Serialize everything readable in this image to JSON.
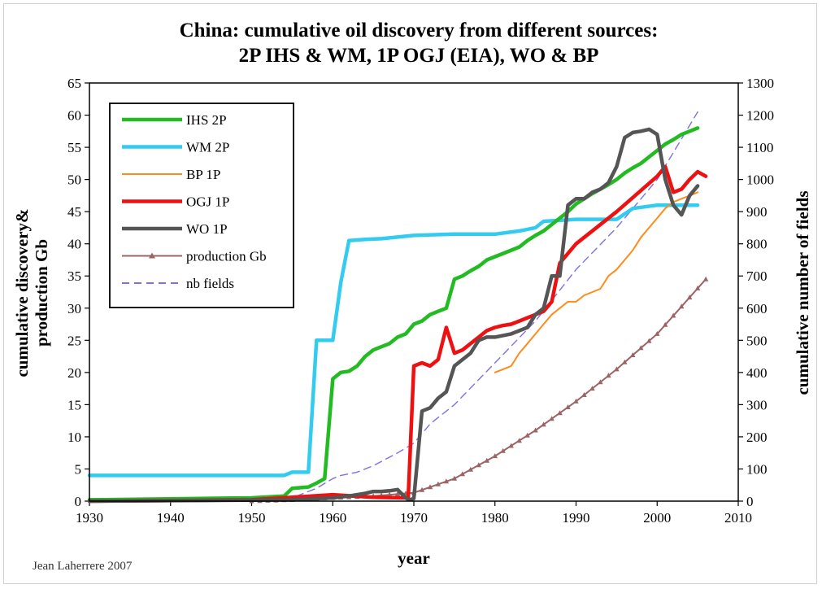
{
  "chart_data": {
    "type": "line",
    "title": "China: cumulative oil discovery from different sources:",
    "subtitle": "2P IHS & WM,  1P OGJ (EIA), WO & BP",
    "xlabel": "year",
    "ylabel_line1": "cumulative discovery&",
    "ylabel_line2": "production Gb",
    "y2label": "cumulative number of fields",
    "credit": "Jean Laherrere 2007",
    "xlim": [
      1930,
      2010
    ],
    "ylim": [
      0,
      65
    ],
    "y2lim": [
      0,
      1300
    ],
    "xticks": [
      1930,
      1940,
      1950,
      1960,
      1970,
      1980,
      1990,
      2000,
      2010
    ],
    "yticks": [
      0,
      5,
      10,
      15,
      20,
      25,
      30,
      35,
      40,
      45,
      50,
      55,
      60,
      65
    ],
    "y2ticks": [
      0,
      100,
      200,
      300,
      400,
      500,
      600,
      700,
      800,
      900,
      1000,
      1100,
      1200,
      1300
    ],
    "grid": false,
    "legend_position": "top-left",
    "series": [
      {
        "name": "IHS 2P",
        "color": "#22bb22",
        "width": 4.5,
        "dash": "",
        "axis": "left",
        "x": [
          1930,
          1950,
          1954,
          1955,
          1957,
          1958,
          1959,
          1960,
          1961,
          1962,
          1963,
          1964,
          1965,
          1966,
          1967,
          1968,
          1969,
          1970,
          1971,
          1972,
          1973,
          1974,
          1975,
          1976,
          1977,
          1978,
          1979,
          1980,
          1981,
          1982,
          1983,
          1984,
          1985,
          1986,
          1987,
          1988,
          1989,
          1990,
          1991,
          1992,
          1993,
          1994,
          1995,
          1996,
          1997,
          1998,
          1999,
          2000,
          2001,
          2002,
          2003,
          2004,
          2005
        ],
        "y": [
          0.2,
          0.5,
          0.8,
          2,
          2.2,
          2.8,
          3.5,
          19,
          20,
          20.2,
          21,
          22.5,
          23.5,
          24,
          24.5,
          25.5,
          26,
          27.5,
          28,
          29,
          29.5,
          30,
          34.5,
          35,
          35.8,
          36.5,
          37.5,
          38,
          38.5,
          39,
          39.5,
          40.5,
          41.3,
          42,
          43,
          44,
          45,
          46.2,
          47,
          47.8,
          48.5,
          49.2,
          50,
          51,
          51.8,
          52.5,
          53.5,
          54.5,
          55.5,
          56.2,
          57,
          57.5,
          58
        ]
      },
      {
        "name": "WM 2P",
        "color": "#33ccf0",
        "width": 4.5,
        "dash": "",
        "axis": "left",
        "x": [
          1930,
          1954,
          1955,
          1957,
          1958,
          1959,
          1960,
          1961,
          1962,
          1964,
          1966,
          1970,
          1975,
          1980,
          1983,
          1985,
          1986,
          1990,
          1995,
          1997,
          2000,
          2005
        ],
        "y": [
          4,
          4,
          4.5,
          4.5,
          25,
          25,
          25,
          34,
          40.5,
          40.7,
          40.8,
          41.3,
          41.5,
          41.5,
          42,
          42.5,
          43.5,
          43.8,
          43.8,
          45.5,
          46,
          46
        ]
      },
      {
        "name": "BP 1P",
        "color": "#ff8c1a",
        "width": 2,
        "dash": "",
        "axis": "left",
        "x": [
          1980,
          1981,
          1982,
          1983,
          1984,
          1985,
          1986,
          1987,
          1988,
          1989,
          1990,
          1991,
          1992,
          1993,
          1994,
          1995,
          1996,
          1997,
          1998,
          1999,
          2000,
          2001,
          2002,
          2003,
          2004,
          2005
        ],
        "y": [
          20,
          20.5,
          21,
          23,
          24.5,
          26,
          27.5,
          29,
          30,
          31,
          31,
          32,
          32.5,
          33,
          35,
          36,
          37.5,
          39,
          41,
          42.5,
          44,
          45.5,
          46.5,
          47,
          47.5,
          48
        ]
      },
      {
        "name": "OGJ 1P",
        "color": "#ee1111",
        "width": 4.5,
        "dash": "",
        "axis": "left",
        "x": [
          1930,
          1950,
          1955,
          1960,
          1965,
          1969,
          1969.3,
          1970,
          1971,
          1972,
          1973,
          1974,
          1975,
          1976,
          1977,
          1978,
          1979,
          1980,
          1981,
          1982,
          1983,
          1984,
          1985,
          1986,
          1987,
          1988,
          1990,
          1995,
          2000,
          2001,
          2002,
          2003,
          2004,
          2005,
          2006
        ],
        "y": [
          0,
          0.2,
          0.6,
          1,
          0.6,
          0.5,
          0.3,
          21,
          21.5,
          21,
          22,
          27,
          23,
          23.5,
          24.5,
          25.5,
          26.5,
          27,
          27.3,
          27.5,
          28,
          28.5,
          29,
          29.5,
          31,
          37,
          40,
          45,
          50.5,
          52,
          48,
          48.5,
          50,
          51.2,
          50.5
        ]
      },
      {
        "name": "WO  1P",
        "color": "#555555",
        "width": 4.5,
        "dash": "",
        "axis": "left",
        "x": [
          1930,
          1955,
          1960,
          1962,
          1964,
          1965,
          1966,
          1967,
          1968,
          1969,
          1969.5,
          1970,
          1971,
          1972,
          1973,
          1974,
          1975,
          1976,
          1977,
          1978,
          1979,
          1980,
          1982,
          1984,
          1985,
          1986,
          1987,
          1988,
          1989,
          1990,
          1991,
          1992,
          1993,
          1994,
          1995,
          1996,
          1997,
          1998,
          1999,
          2000,
          2001,
          2002,
          2003,
          2004,
          2005
        ],
        "y": [
          0,
          0.2,
          0.5,
          0.8,
          1.2,
          1.5,
          1.5,
          1.6,
          1.8,
          0.5,
          0.2,
          0.4,
          14,
          14.5,
          16,
          17,
          21,
          22,
          23,
          25,
          25.5,
          25.5,
          26,
          27,
          29,
          30,
          35,
          35,
          46,
          47,
          47,
          48,
          48.5,
          49.5,
          52,
          56.5,
          57.3,
          57.5,
          57.8,
          57,
          50,
          46,
          44.5,
          47.5,
          49
        ]
      },
      {
        "name": "production Gb",
        "color": "#9c6464",
        "width": 2,
        "dash": "",
        "axis": "left",
        "marker": "triangle",
        "x": [
          1950,
          1955,
          1960,
          1965,
          1970,
          1975,
          1980,
          1985,
          1990,
          1995,
          2000,
          2006
        ],
        "y": [
          0,
          0.2,
          0.5,
          0.8,
          1.3,
          3.5,
          7,
          11,
          15.5,
          20.5,
          26,
          34.5
        ]
      },
      {
        "name": "nb fields",
        "color": "#7b70e8",
        "width": 1.4,
        "dash": "9,6",
        "axis": "right",
        "x": [
          1930,
          1950,
          1955,
          1958,
          1960,
          1961,
          1962,
          1963,
          1965,
          1968,
          1970,
          1972,
          1975,
          1980,
          1985,
          1990,
          1995,
          2000,
          2005
        ],
        "y": [
          0,
          0,
          10,
          40,
          70,
          80,
          85,
          90,
          110,
          150,
          180,
          240,
          300,
          430,
          560,
          720,
          850,
          1000,
          1210
        ]
      }
    ]
  }
}
